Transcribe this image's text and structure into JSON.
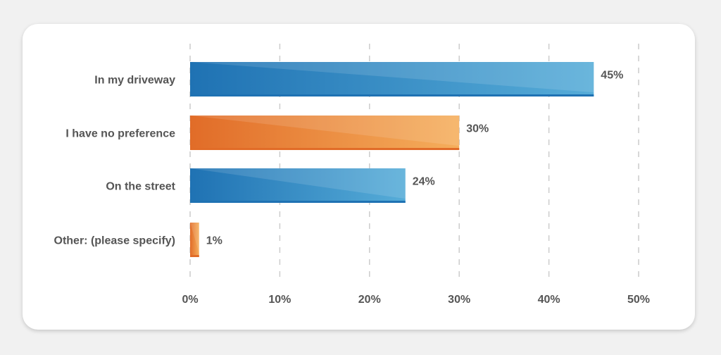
{
  "chart_data": {
    "type": "bar",
    "orientation": "horizontal",
    "categories": [
      "In my driveway",
      "I have no preference",
      "On the street",
      "Other: (please specify)"
    ],
    "values": [
      45,
      30,
      24,
      1
    ],
    "value_labels": [
      "45%",
      "30%",
      "24%",
      "1%"
    ],
    "tick_labels": [
      "0%",
      "10%",
      "20%",
      "30%",
      "40%",
      "50%"
    ],
    "xlim": [
      0,
      50
    ],
    "grid": "vertical-dashed",
    "bar_colors": [
      "blue",
      "orange",
      "blue",
      "orange"
    ],
    "colors": {
      "blue_dark": "#1f72b3",
      "blue_light": "#56acd8",
      "orange_dark": "#e16c28",
      "orange_light": "#f5ae5c",
      "grid": "#cccccc",
      "text": "#555555"
    }
  }
}
